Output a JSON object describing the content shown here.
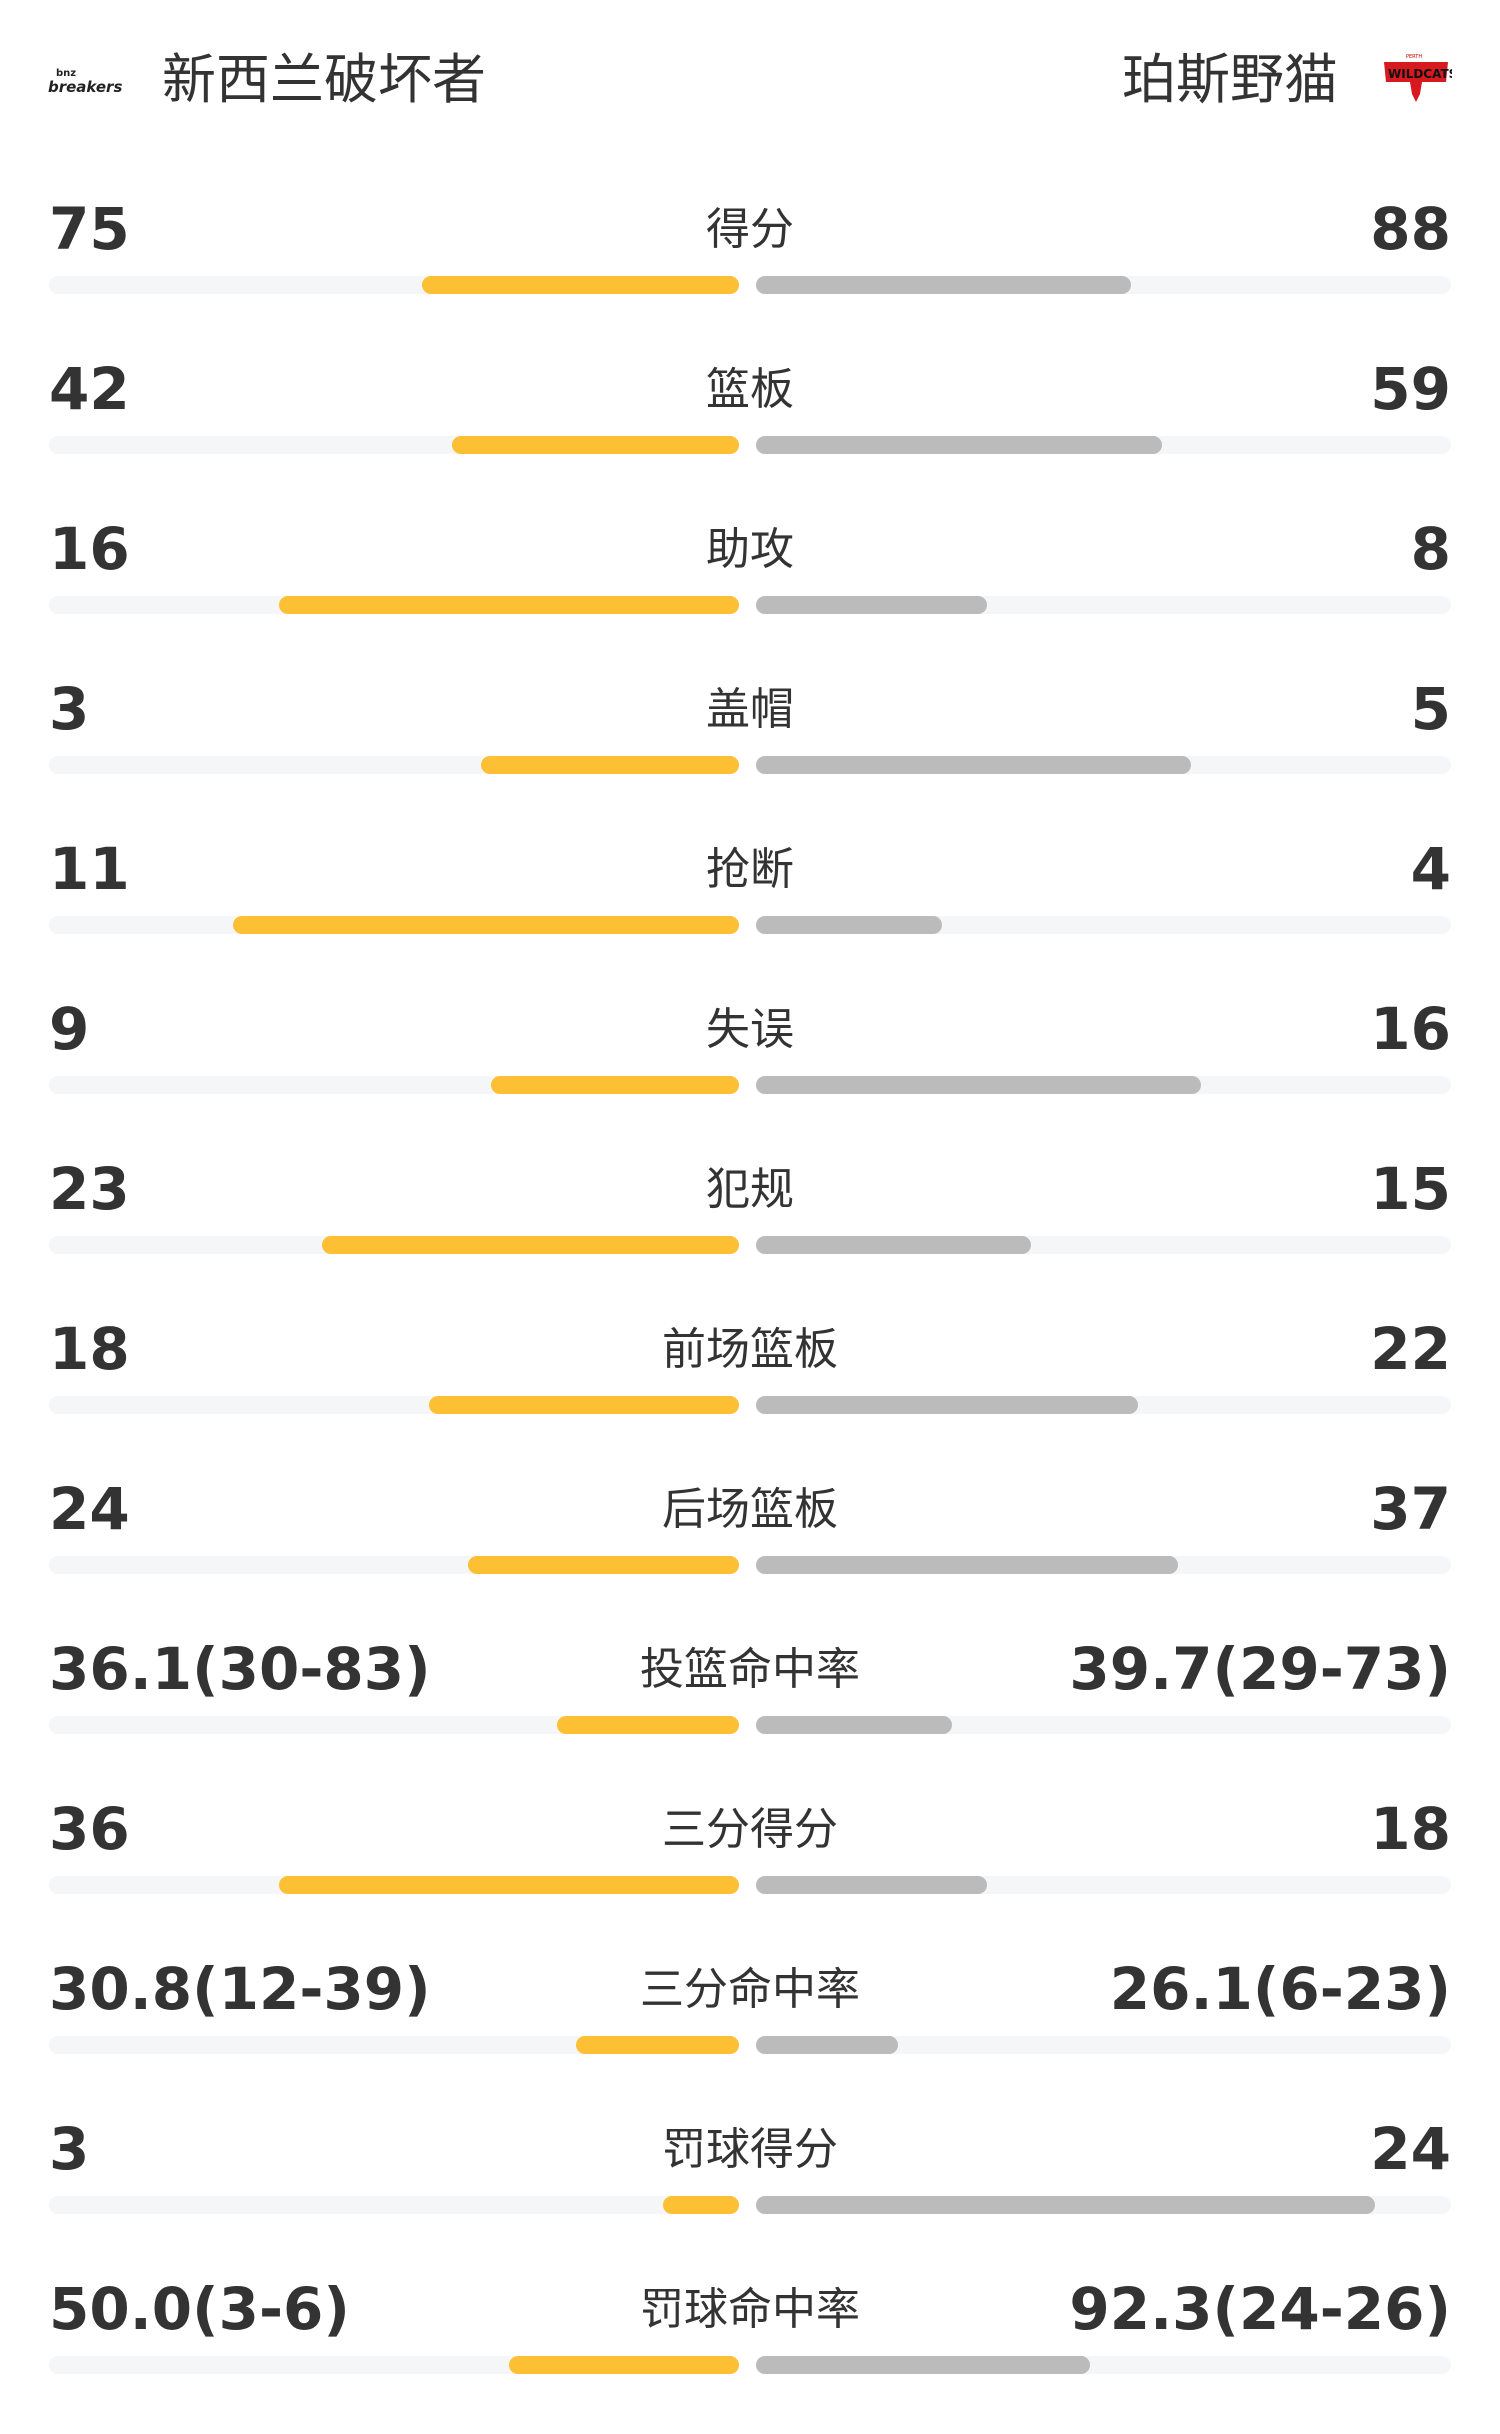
{
  "header": {
    "home_team": "新西兰破坏者",
    "away_team": "珀斯野猫",
    "home_logo_text": "bnz breakers",
    "away_logo_text": "PERTH WILDCATS"
  },
  "colors": {
    "home_bar": "#FDBF33",
    "away_bar": "#BBBBBB",
    "track": "#F5F6F8",
    "text": "#333333"
  },
  "stats": [
    {
      "label": "得分",
      "home": "75",
      "away": "88",
      "home_fill": 0.46,
      "away_fill": 0.54
    },
    {
      "label": "篮板",
      "home": "42",
      "away": "59",
      "home_fill": 0.416,
      "away_fill": 0.584
    },
    {
      "label": "助攻",
      "home": "16",
      "away": "8",
      "home_fill": 0.667,
      "away_fill": 0.333
    },
    {
      "label": "盖帽",
      "home": "3",
      "away": "5",
      "home_fill": 0.374,
      "away_fill": 0.626
    },
    {
      "label": "抢断",
      "home": "11",
      "away": "4",
      "home_fill": 0.733,
      "away_fill": 0.267
    },
    {
      "label": "失误",
      "home": "9",
      "away": "16",
      "home_fill": 0.36,
      "away_fill": 0.64
    },
    {
      "label": "犯规",
      "home": "23",
      "away": "15",
      "home_fill": 0.605,
      "away_fill": 0.395
    },
    {
      "label": "前场篮板",
      "home": "18",
      "away": "22",
      "home_fill": 0.45,
      "away_fill": 0.55
    },
    {
      "label": "后场篮板",
      "home": "24",
      "away": "37",
      "home_fill": 0.393,
      "away_fill": 0.607
    },
    {
      "label": "投篮命中率",
      "home": "36.1(30-83)",
      "away": "39.7(29-73)",
      "home_fill": 0.264,
      "away_fill": 0.282
    },
    {
      "label": "三分得分",
      "home": "36",
      "away": "18",
      "home_fill": 0.667,
      "away_fill": 0.333
    },
    {
      "label": "三分命中率",
      "home": "30.8(12-39)",
      "away": "26.1(6-23)",
      "home_fill": 0.236,
      "away_fill": 0.205
    },
    {
      "label": "罚球得分",
      "home": "3",
      "away": "24",
      "home_fill": 0.11,
      "away_fill": 0.89
    },
    {
      "label": "罚球命中率",
      "home": "50.0(3-6)",
      "away": "92.3(24-26)",
      "home_fill": 0.333,
      "away_fill": 0.48
    }
  ]
}
